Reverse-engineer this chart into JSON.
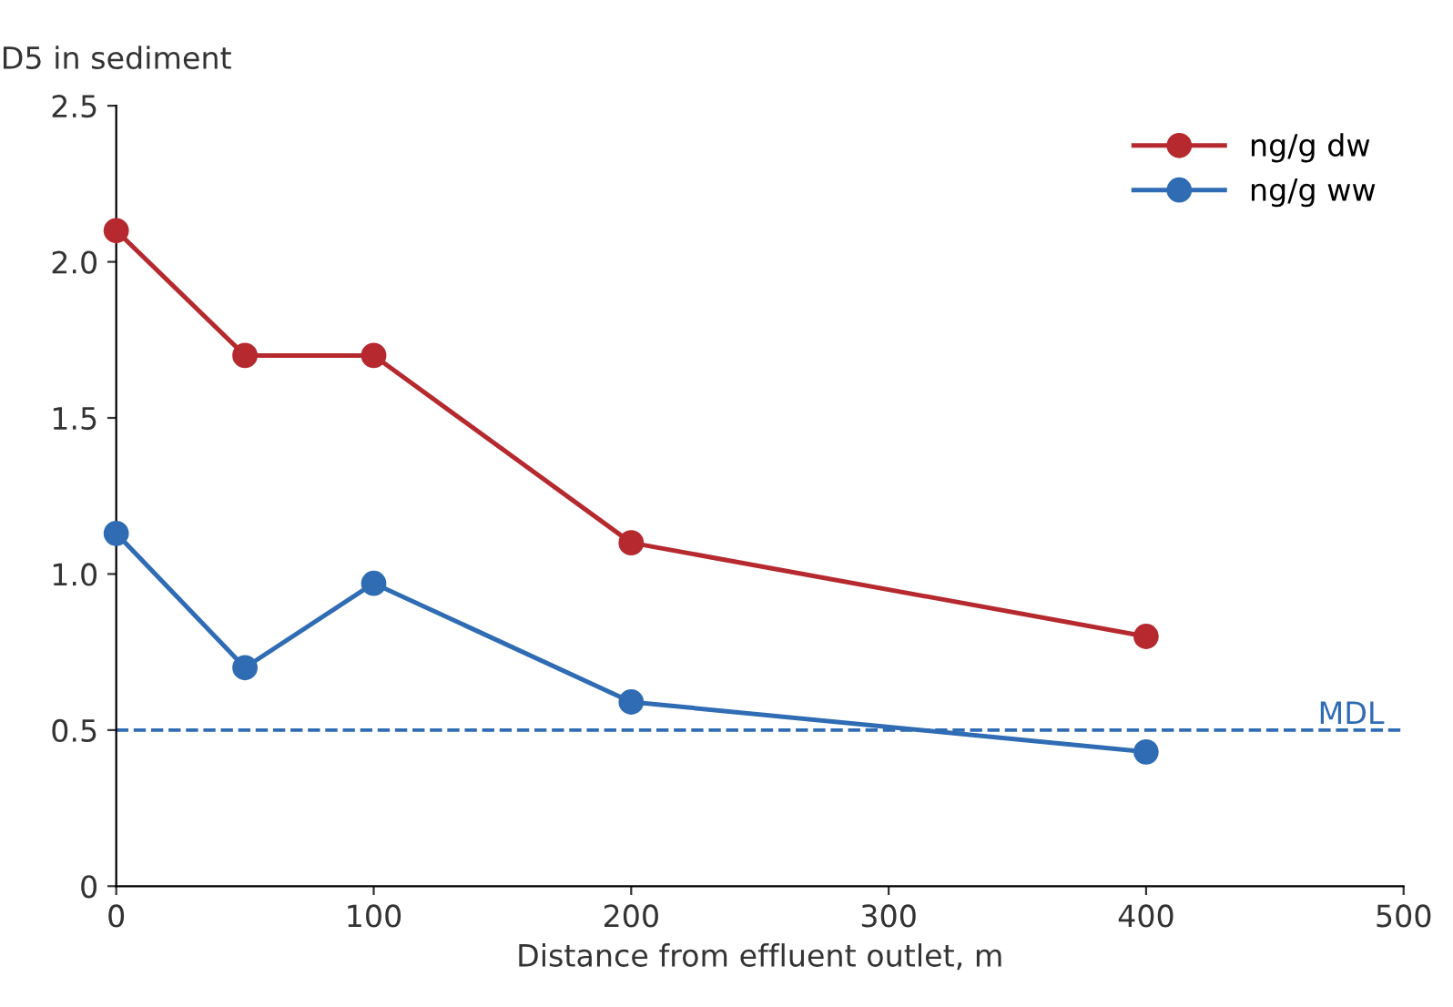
{
  "chart_data": {
    "type": "line",
    "ylabel": "D5 in sediment",
    "xlabel": "Distance from effluent outlet, m",
    "x": [
      0,
      50,
      100,
      200,
      400
    ],
    "series": [
      {
        "name": "ng/g dw",
        "color": "#b5292f",
        "values": [
          2.1,
          1.7,
          1.7,
          1.1,
          0.8
        ]
      },
      {
        "name": "ng/g ww",
        "color": "#2f6cb3",
        "values": [
          1.13,
          0.7,
          0.97,
          0.59,
          0.43
        ]
      }
    ],
    "xlim": [
      0,
      500
    ],
    "xticks": [
      0,
      100,
      200,
      300,
      400,
      500
    ],
    "ylim": [
      0,
      2.5
    ],
    "yticks": [
      {
        "value": 0,
        "label": "0"
      },
      {
        "value": 0.5,
        "label": "0.5"
      },
      {
        "value": 1.0,
        "label": "1.0"
      },
      {
        "value": 1.5,
        "label": "1.5"
      },
      {
        "value": 2.0,
        "label": "2.0"
      },
      {
        "value": 2.5,
        "label": "2.5"
      }
    ],
    "ref_lines": [
      {
        "axis": "y",
        "value": 0.5,
        "label": "MDL",
        "color": "#2f6cb3",
        "line_style": "dashed"
      }
    ],
    "marker": "circle",
    "line_style": "solid",
    "legend": "top right",
    "grid": false
  }
}
